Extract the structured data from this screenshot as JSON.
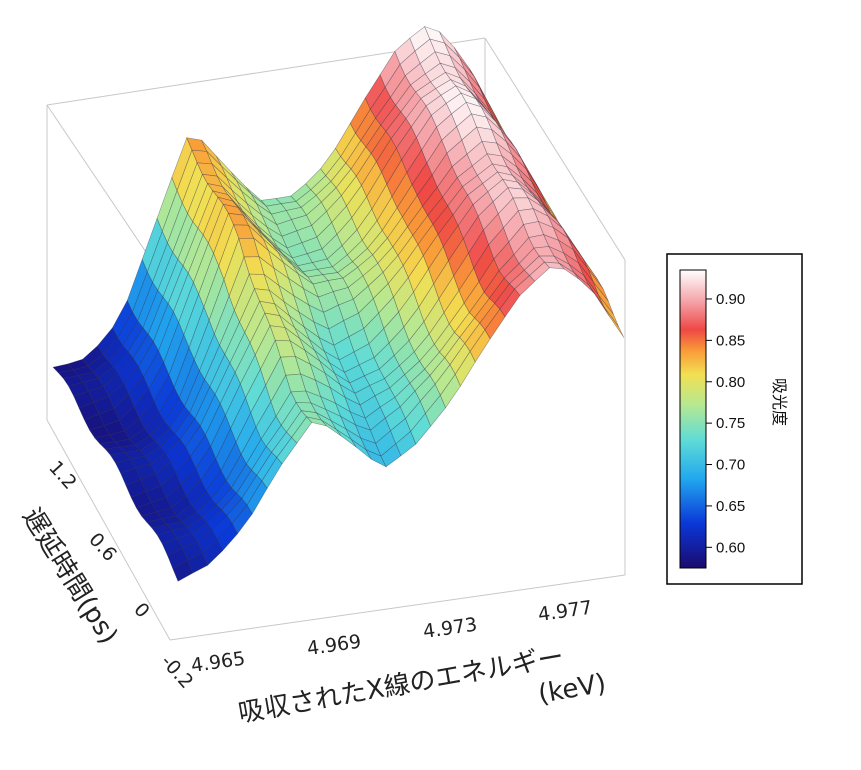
{
  "chart_data": {
    "type": "surface",
    "x_axis": {
      "label_jp": "吸収されたX線のエネルギー",
      "label_unit": "(keV)",
      "ticks": [
        "4.965",
        "4.969",
        "4.973",
        "4.977"
      ]
    },
    "y_axis": {
      "label": "遅延時間(ps)",
      "ticks": [
        "-0.2",
        "0",
        "0.6",
        "1.2"
      ]
    },
    "colorbar": {
      "title": "吸光度",
      "ticks": [
        "0.60",
        "0.65",
        "0.70",
        "0.75",
        "0.80",
        "0.85",
        "0.90"
      ],
      "range": [
        0.575,
        0.935
      ]
    },
    "energy_range": [
      4.965,
      4.978
    ],
    "delay_range": [
      -0.2,
      1.5
    ],
    "absorbance_profile": {
      "energy_keV": [
        4.965,
        4.966,
        4.967,
        4.968,
        4.969,
        4.97,
        4.971,
        4.972,
        4.973,
        4.974,
        4.975,
        4.976,
        4.977,
        4.978
      ],
      "absorbance_at_late_delay": [
        0.59,
        0.6,
        0.64,
        0.74,
        0.84,
        0.79,
        0.75,
        0.76,
        0.8,
        0.86,
        0.91,
        0.93,
        0.88,
        0.8
      ],
      "absorbance_at_early_delay": [
        0.59,
        0.6,
        0.64,
        0.71,
        0.77,
        0.74,
        0.7,
        0.72,
        0.76,
        0.82,
        0.88,
        0.92,
        0.89,
        0.82
      ]
    }
  }
}
